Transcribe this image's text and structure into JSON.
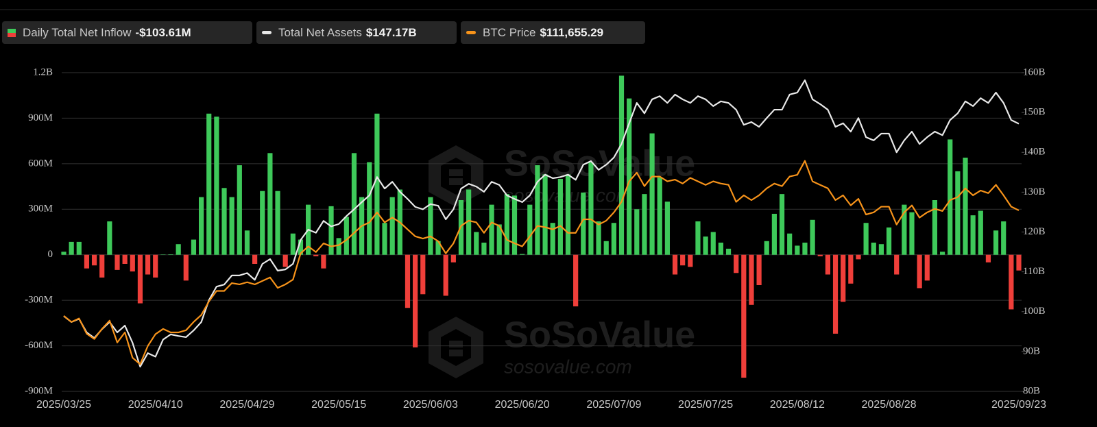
{
  "chart_data": {
    "type": "bar",
    "watermark": "SoSoValue",
    "watermark_url": "sosovalue.com",
    "categories": [
      "2025/03/25",
      null,
      null,
      null,
      null,
      null,
      null,
      null,
      null,
      null,
      null,
      null,
      "2025/04/10",
      null,
      null,
      null,
      null,
      null,
      null,
      null,
      null,
      null,
      null,
      null,
      "2025/04/29",
      null,
      null,
      null,
      null,
      null,
      null,
      null,
      null,
      null,
      null,
      null,
      "2025/05/15",
      null,
      null,
      null,
      null,
      null,
      null,
      null,
      null,
      null,
      null,
      null,
      "2025/06/03",
      null,
      null,
      null,
      null,
      null,
      null,
      null,
      null,
      null,
      null,
      null,
      "2025/06/20",
      null,
      null,
      null,
      null,
      null,
      null,
      null,
      null,
      null,
      null,
      null,
      "2025/07/09",
      null,
      null,
      null,
      null,
      null,
      null,
      null,
      null,
      null,
      null,
      null,
      "2025/07/25",
      null,
      null,
      null,
      null,
      null,
      null,
      null,
      null,
      null,
      null,
      null,
      "2025/08/12",
      null,
      null,
      null,
      null,
      null,
      null,
      null,
      null,
      null,
      null,
      null,
      "2025/08/28",
      null,
      null,
      null,
      null,
      null,
      null,
      null,
      null,
      null,
      null,
      null,
      null,
      null,
      null,
      null,
      null,
      "2025/09/23"
    ],
    "ylim": [
      -900,
      1200
    ],
    "yticks": [
      {
        "value": -900,
        "label": "-900M"
      },
      {
        "value": -600,
        "label": "-600M"
      },
      {
        "value": -300,
        "label": "-300M"
      },
      0,
      {
        "value": 300,
        "label": "300M"
      },
      {
        "value": 600,
        "label": "600M"
      },
      {
        "value": 900,
        "label": "900M"
      },
      {
        "value": 1200,
        "label": "1.2B"
      }
    ],
    "y2lim": [
      80,
      160
    ],
    "y2ticks": [
      {
        "value": 80,
        "label": "80B"
      },
      {
        "value": 90,
        "label": "90B"
      },
      {
        "value": 100,
        "label": "100B"
      },
      {
        "value": 110,
        "label": "110B"
      },
      {
        "value": 120,
        "label": "120B"
      },
      {
        "value": 130,
        "label": "130B"
      },
      {
        "value": 140,
        "label": "140B"
      },
      {
        "value": 150,
        "label": "150B"
      },
      {
        "value": 160,
        "label": "160B"
      }
    ],
    "y3lim": [
      70200,
      143200
    ],
    "grid": true,
    "series": [
      {
        "name": "Daily Total Net Inflow",
        "type": "bar",
        "current_label": "-$103.61M",
        "color": "#3ec95a",
        "negative_color": "#ef3f3a",
        "values": [
          20,
          85,
          85,
          -90,
          -70,
          -150,
          220,
          -100,
          -60,
          -110,
          -320,
          -130,
          -150,
          2,
          3,
          70,
          -170,
          100,
          380,
          930,
          910,
          440,
          380,
          590,
          160,
          -60,
          420,
          670,
          420,
          -80,
          140,
          100,
          330,
          -10,
          -90,
          320,
          110,
          250,
          670,
          380,
          610,
          930,
          210,
          380,
          430,
          -350,
          -610,
          -260,
          380,
          90,
          -270,
          -50,
          360,
          430,
          150,
          80,
          330,
          200,
          400,
          390,
          5,
          330,
          590,
          530,
          210,
          500,
          530,
          -340,
          410,
          610,
          220,
          90,
          210,
          1180,
          1030,
          300,
          400,
          800,
          510,
          350,
          -130,
          -70,
          -80,
          220,
          120,
          150,
          80,
          40,
          -120,
          -810,
          -330,
          -200,
          90,
          270,
          400,
          140,
          60,
          80,
          230,
          -10,
          -130,
          -520,
          -310,
          -190,
          -30,
          210,
          80,
          70,
          180,
          -130,
          330,
          280,
          -220,
          -170,
          360,
          20,
          760,
          550,
          640,
          260,
          290,
          -50,
          160,
          220,
          -360,
          -103.61
        ]
      },
      {
        "name": "Total Net Assets",
        "type": "line",
        "axis": "y2",
        "current_label": "$147.17B",
        "color": "#e8e8e8",
        "values": [
          98.9,
          97.4,
          98.2,
          94.8,
          93.4,
          95.6,
          97.4,
          94.8,
          96.5,
          92.2,
          86.2,
          89.6,
          88.7,
          93.0,
          94.3,
          93.9,
          93.6,
          95.3,
          97.4,
          102.9,
          106.3,
          106.8,
          109.1,
          109.1,
          109.7,
          108.0,
          112.0,
          113.2,
          110.3,
          110.6,
          112.0,
          118.0,
          120.6,
          119.8,
          122.8,
          121.4,
          122.0,
          124.0,
          125.7,
          127.5,
          129.2,
          133.8,
          130.9,
          132.6,
          130.1,
          128.3,
          126.3,
          125.7,
          127.0,
          126.6,
          123.2,
          125.7,
          130.9,
          132.1,
          131.4,
          130.1,
          132.6,
          131.8,
          129.2,
          128.3,
          127.5,
          129.2,
          132.6,
          134.4,
          133.5,
          133.8,
          134.4,
          133.1,
          136.9,
          137.8,
          135.6,
          136.9,
          138.7,
          142.1,
          147.3,
          152.4,
          149.8,
          153.3,
          154.1,
          152.4,
          154.5,
          153.3,
          152.4,
          154.1,
          153.3,
          151.6,
          152.8,
          152.4,
          150.7,
          146.9,
          147.6,
          146.4,
          148.6,
          150.7,
          150.7,
          154.5,
          155.0,
          158.1,
          153.3,
          152.1,
          150.7,
          146.4,
          147.3,
          145.2,
          148.6,
          143.8,
          143.0,
          144.7,
          144.7,
          140.0,
          143.0,
          145.2,
          142.1,
          143.8,
          145.2,
          144.3,
          148.1,
          149.8,
          152.8,
          151.6,
          153.6,
          152.4,
          155.0,
          152.4,
          148.1,
          147.17
        ]
      },
      {
        "name": "BTC Price",
        "type": "line",
        "axis": "y3",
        "current_label": "$111,655.29",
        "color": "#f7931a",
        "values": [
          87500,
          86100,
          86900,
          83400,
          82200,
          84500,
          86400,
          81400,
          83700,
          77900,
          76400,
          80600,
          83300,
          84500,
          83700,
          83700,
          84200,
          86100,
          87700,
          90800,
          93200,
          93200,
          95000,
          94700,
          95200,
          94700,
          95500,
          96300,
          93900,
          94700,
          95800,
          101800,
          103400,
          102100,
          104100,
          103400,
          103700,
          104900,
          106500,
          108100,
          108900,
          111200,
          108900,
          110000,
          108900,
          107300,
          105700,
          105200,
          105700,
          104600,
          101800,
          104100,
          108100,
          109300,
          108900,
          106500,
          108900,
          108100,
          104900,
          104100,
          103400,
          105700,
          108100,
          107800,
          107300,
          108100,
          106500,
          106500,
          109600,
          109600,
          108400,
          109300,
          111200,
          113600,
          118300,
          120300,
          117200,
          119400,
          119400,
          118300,
          118700,
          117800,
          119100,
          118300,
          117500,
          118300,
          117800,
          117500,
          113600,
          115100,
          114000,
          115100,
          116700,
          117800,
          117200,
          119400,
          119800,
          123000,
          118300,
          117500,
          116700,
          114000,
          115100,
          112800,
          114300,
          110700,
          111200,
          112500,
          112500,
          108400,
          111200,
          112800,
          110000,
          111200,
          112000,
          111500,
          114000,
          114700,
          116700,
          115100,
          116200,
          115600,
          117500,
          115100,
          112500,
          111655.29
        ]
      }
    ]
  }
}
